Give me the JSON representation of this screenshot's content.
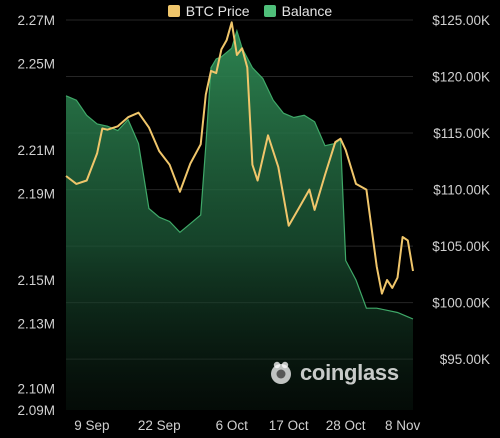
{
  "legend": {
    "btc_label": "BTC Price",
    "balance_label": "Balance"
  },
  "colors": {
    "btc": "#f0c66b",
    "balance": "#4fbf7a",
    "grid": "#262626",
    "background": "#000000"
  },
  "watermark": "coinglass",
  "chart_data": {
    "type": "line",
    "title": "",
    "x_labels": [
      "9 Sep",
      "22 Sep",
      "6 Oct",
      "17 Oct",
      "28 Oct",
      "8 Nov"
    ],
    "x_range": [
      "2025-09-04",
      "2025-11-10"
    ],
    "left_axis": {
      "ticks": [
        "2.27M",
        "2.25M",
        "2.21M",
        "2.19M",
        "2.15M",
        "2.13M",
        "2.10M",
        "2.09M"
      ],
      "ylim": [
        2.09,
        2.27
      ]
    },
    "right_axis": {
      "ticks": [
        "$125.00K",
        "$120.00K",
        "$115.00K",
        "$110.00K",
        "$105.00K",
        "$100.00K",
        "$95.00K"
      ],
      "ylim": [
        90.5,
        125
      ]
    },
    "grid": "horizontal",
    "legend_position": "top-center",
    "series": [
      {
        "name": "Balance",
        "axis": "left",
        "style": "area",
        "x": [
          "2025-09-04",
          "2025-09-06",
          "2025-09-08",
          "2025-09-10",
          "2025-09-12",
          "2025-09-14",
          "2025-09-16",
          "2025-09-18",
          "2025-09-20",
          "2025-09-22",
          "2025-09-24",
          "2025-09-26",
          "2025-09-28",
          "2025-09-30",
          "2025-10-01",
          "2025-10-02",
          "2025-10-03",
          "2025-10-04",
          "2025-10-06",
          "2025-10-07",
          "2025-10-08",
          "2025-10-10",
          "2025-10-12",
          "2025-10-14",
          "2025-10-16",
          "2025-10-18",
          "2025-10-20",
          "2025-10-22",
          "2025-10-24",
          "2025-10-26",
          "2025-10-27",
          "2025-10-28",
          "2025-10-30",
          "2025-11-01",
          "2025-11-03",
          "2025-11-05",
          "2025-11-07",
          "2025-11-09",
          "2025-11-10"
        ],
        "values": [
          2.235,
          2.233,
          2.226,
          2.222,
          2.221,
          2.219,
          2.224,
          2.213,
          2.183,
          2.179,
          2.177,
          2.172,
          2.176,
          2.18,
          2.212,
          2.248,
          2.252,
          2.253,
          2.257,
          2.265,
          2.257,
          2.248,
          2.243,
          2.233,
          2.227,
          2.225,
          2.226,
          2.223,
          2.212,
          2.213,
          2.215,
          2.159,
          2.15,
          2.137,
          2.137,
          2.136,
          2.135,
          2.133,
          2.132
        ]
      },
      {
        "name": "BTC Price",
        "axis": "right",
        "style": "line",
        "x": [
          "2025-09-04",
          "2025-09-06",
          "2025-09-08",
          "2025-09-10",
          "2025-09-11",
          "2025-09-12",
          "2025-09-14",
          "2025-09-16",
          "2025-09-18",
          "2025-09-20",
          "2025-09-22",
          "2025-09-24",
          "2025-09-26",
          "2025-09-28",
          "2025-09-30",
          "2025-10-01",
          "2025-10-02",
          "2025-10-03",
          "2025-10-04",
          "2025-10-05",
          "2025-10-06",
          "2025-10-07",
          "2025-10-08",
          "2025-10-09",
          "2025-10-10",
          "2025-10-11",
          "2025-10-13",
          "2025-10-15",
          "2025-10-17",
          "2025-10-19",
          "2025-10-21",
          "2025-10-22",
          "2025-10-24",
          "2025-10-26",
          "2025-10-27",
          "2025-10-28",
          "2025-10-30",
          "2025-11-01",
          "2025-11-03",
          "2025-11-04",
          "2025-11-05",
          "2025-11-06",
          "2025-11-07",
          "2025-11-08",
          "2025-11-09",
          "2025-11-10"
        ],
        "values": [
          111.2,
          110.5,
          110.8,
          113.2,
          115.4,
          115.3,
          115.6,
          116.4,
          116.8,
          115.5,
          113.4,
          112.2,
          109.8,
          112.3,
          114.0,
          118.4,
          120.5,
          120.3,
          122.4,
          123.2,
          124.8,
          121.9,
          122.5,
          120.8,
          112.2,
          110.8,
          114.8,
          112.0,
          106.8,
          108.4,
          110.0,
          108.2,
          111.3,
          114.2,
          114.5,
          113.5,
          110.5,
          110.0,
          103.2,
          100.8,
          102.0,
          101.3,
          102.2,
          105.8,
          105.5,
          102.8
        ]
      }
    ]
  }
}
